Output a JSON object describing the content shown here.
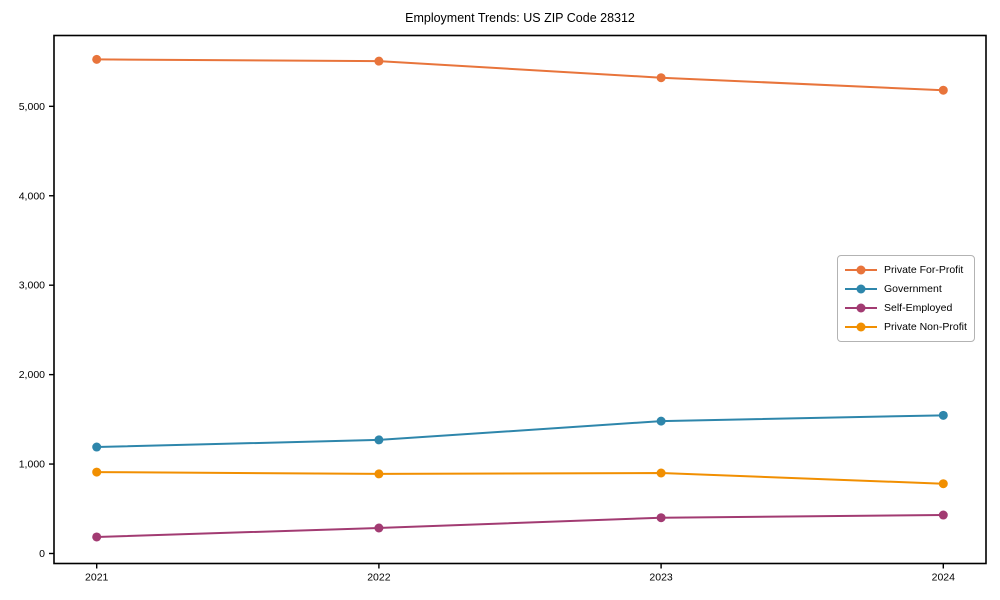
{
  "chart_data": {
    "type": "line",
    "title": "Employment Trends: US ZIP Code 28312",
    "xlabel": "",
    "ylabel": "",
    "x": [
      "2021",
      "2022",
      "2023",
      "2024"
    ],
    "y_ticks": [
      0,
      1000,
      2000,
      3000,
      4000,
      5000
    ],
    "y_tick_labels": [
      "0",
      "1,000",
      "2,000",
      "3,000",
      "4,000",
      "5,000"
    ],
    "ylim": [
      -112,
      5792
    ],
    "grid": false,
    "legend_position": "center-right",
    "marker": "circle",
    "line_width": 2,
    "axis_color": "#000000",
    "background_color": "#ffffff",
    "series": [
      {
        "name": "Private For-Profit",
        "color": "#E8743B",
        "values": [
          5525,
          5505,
          5320,
          5180
        ]
      },
      {
        "name": "Government",
        "color": "#2E86AB",
        "values": [
          1190,
          1270,
          1480,
          1545
        ]
      },
      {
        "name": "Self-Employed",
        "color": "#A23B72",
        "values": [
          185,
          285,
          400,
          430
        ]
      },
      {
        "name": "Private Non-Profit",
        "color": "#F18F01",
        "values": [
          910,
          890,
          900,
          780
        ]
      }
    ]
  }
}
